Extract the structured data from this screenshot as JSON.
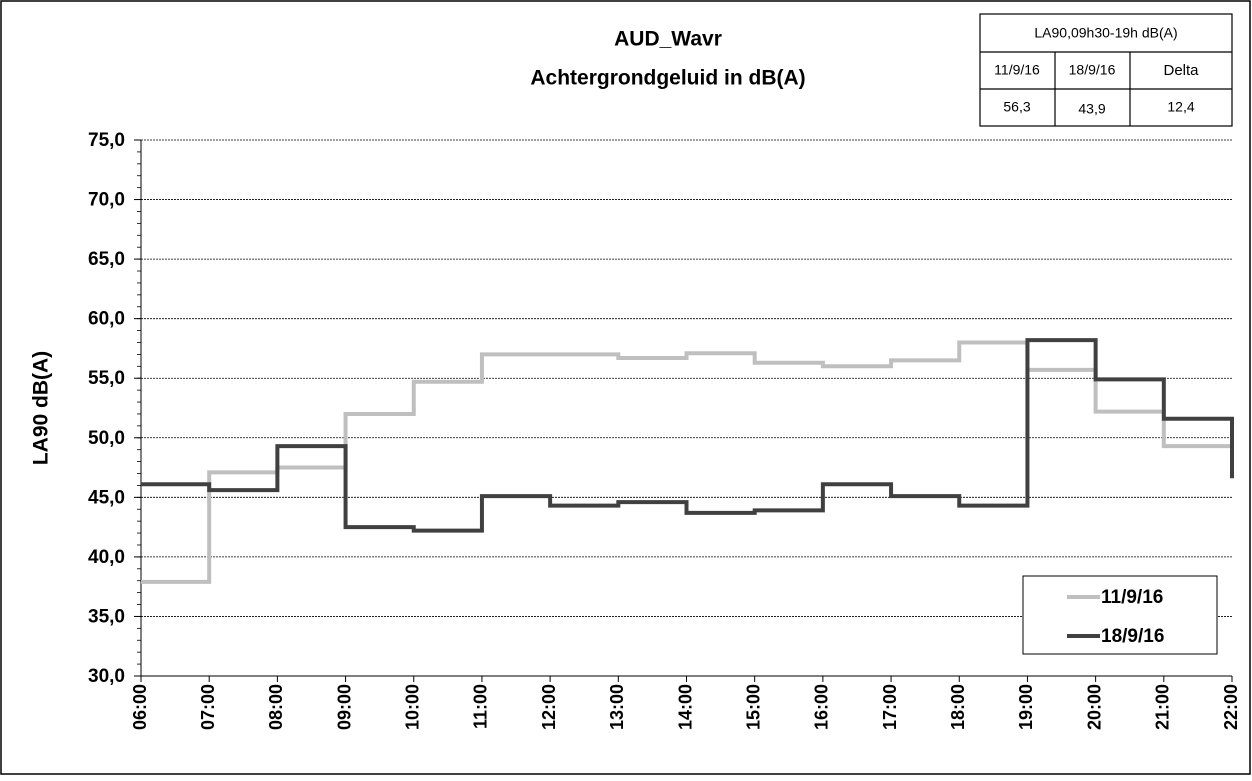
{
  "chart_data": {
    "type": "step-line",
    "title": "AUD_Wavr",
    "subtitle": "Achtergrondgeluid  in dB(A)",
    "y_label": "LA90  dB(A)",
    "x": [
      "06:00",
      "07:00",
      "08:00",
      "09:00",
      "10:00",
      "11:00",
      "12:00",
      "13:00",
      "14:00",
      "15:00",
      "16:00",
      "17:00",
      "18:00",
      "19:00",
      "20:00",
      "21:00",
      "22:00"
    ],
    "series": [
      {
        "name": "11/9/16",
        "color": "#bfbfbf",
        "values": [
          37.9,
          47.1,
          47.5,
          52.0,
          54.7,
          57.0,
          57.0,
          56.7,
          57.1,
          56.3,
          56.0,
          56.5,
          58.0,
          55.7,
          52.2,
          49.3,
          49.3
        ]
      },
      {
        "name": "18/9/16",
        "color": "#404040",
        "values": [
          46.1,
          45.6,
          49.3,
          42.5,
          42.2,
          45.1,
          44.3,
          44.6,
          43.7,
          43.9,
          46.1,
          45.1,
          44.3,
          58.2,
          54.9,
          51.6,
          46.6
        ]
      }
    ],
    "ylim": [
      30,
      75
    ],
    "yticks": [
      {
        "value": 30,
        "label": "30,0"
      },
      {
        "value": 35,
        "label": "35,0"
      },
      {
        "value": 40,
        "label": "40,0"
      },
      {
        "value": 45,
        "label": "45,0"
      },
      {
        "value": 50,
        "label": "50,0"
      },
      {
        "value": 55,
        "label": "55,0"
      },
      {
        "value": 60,
        "label": "60,0"
      },
      {
        "value": 65,
        "label": "65,0"
      },
      {
        "value": 70,
        "label": "70,0"
      },
      {
        "value": 75,
        "label": "75,0"
      }
    ],
    "grid": true,
    "legend": "bottom-right",
    "table": {
      "header": "LA90,09h30-19h dB(A)",
      "columns": [
        "11/9/16",
        "18/9/16",
        "Delta"
      ],
      "values": [
        "56,3",
        "43,9",
        "12,4"
      ]
    }
  }
}
